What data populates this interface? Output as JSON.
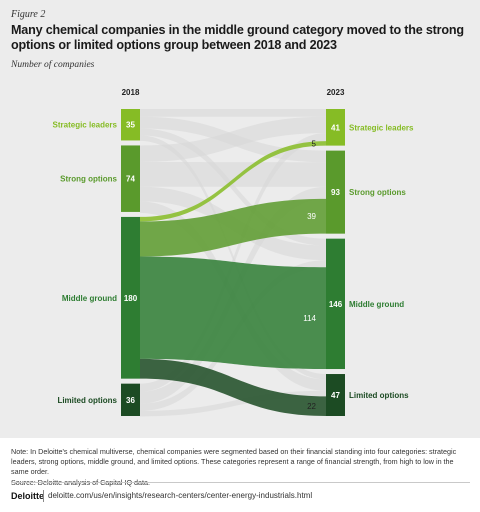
{
  "figure_label": "Figure 2",
  "title": "Many chemical companies in the middle ground category moved to the strong options or limited options group between 2018 and 2023",
  "subtitle": "Number of companies",
  "chart_data": {
    "type": "sankey",
    "columns": [
      "2018",
      "2023"
    ],
    "nodes_2018": [
      {
        "name": "Strategic leaders",
        "value": 35
      },
      {
        "name": "Strong options",
        "value": 74
      },
      {
        "name": "Middle ground",
        "value": 180
      },
      {
        "name": "Limited options",
        "value": 36
      }
    ],
    "nodes_2023": [
      {
        "name": "Strategic leaders",
        "value": 41
      },
      {
        "name": "Strong options",
        "value": 93
      },
      {
        "name": "Middle ground",
        "value": 146
      },
      {
        "name": "Limited options",
        "value": 47
      }
    ],
    "highlighted_flows": [
      {
        "from": "Middle ground",
        "to": "Strategic leaders",
        "value": 5
      },
      {
        "from": "Middle ground",
        "to": "Strong options",
        "value": 39
      },
      {
        "from": "Middle ground",
        "to": "Middle ground",
        "value": 114
      },
      {
        "from": "Middle ground",
        "to": "Limited options",
        "value": 22
      }
    ],
    "colors": {
      "Strategic leaders": "#86bc25",
      "Strong options": "#5a9a2c",
      "Middle ground": "#2e7d32",
      "Limited options": "#1c4b23",
      "background_flow": "#d7d7d7"
    }
  },
  "note": "Note: In Deloitte's chemical multiverse, chemical companies were segmented based on their financial standing into four categories: strategic leaders, strong options, middle ground, and limited options. These categories represent a range of financial strength, from high to low in the same order.",
  "source": "Source: Deloitte analysis of Capital IQ data.",
  "brand": "Deloitte",
  "url": "deloitte.com/us/en/insights/research-centers/center-energy-industrials.html"
}
